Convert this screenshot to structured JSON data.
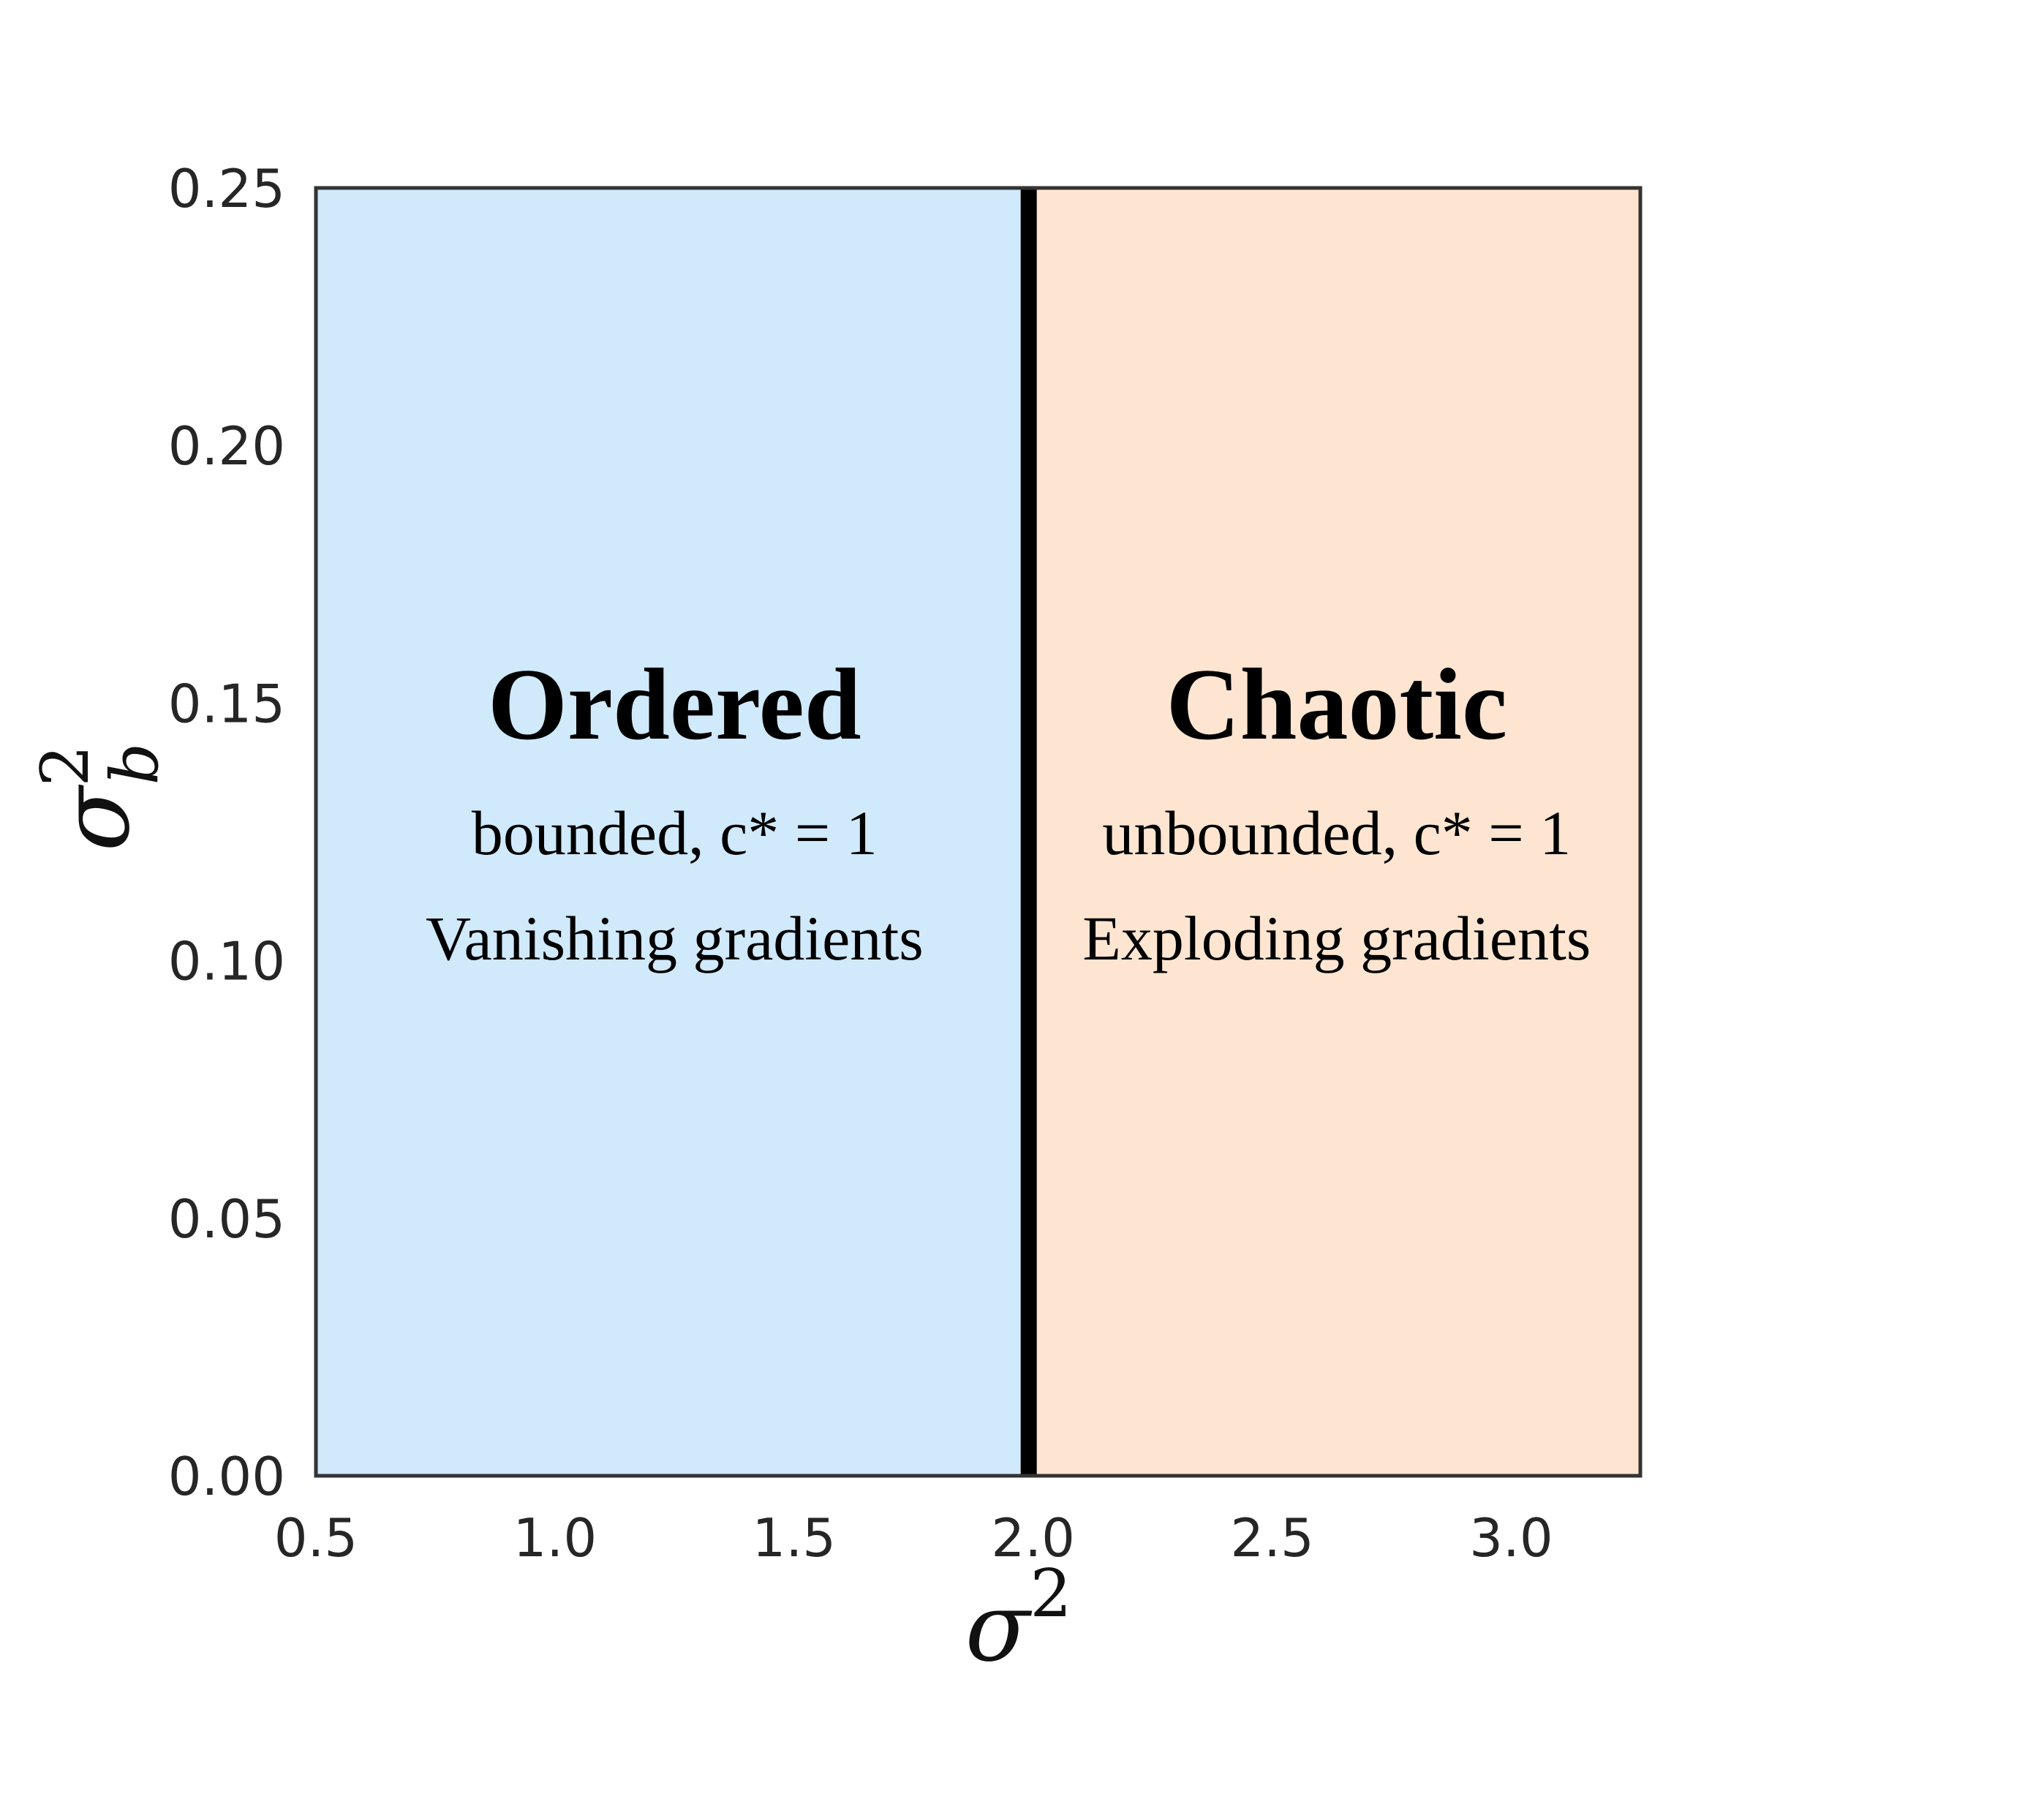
{
  "chart_data": {
    "type": "area",
    "xlabel": "σ",
    "xlabel_sup": "2",
    "ylabel": "σ",
    "ylabel_sub": "b",
    "ylabel_sup": "2",
    "xlim": [
      0.5,
      3.27
    ],
    "ylim": [
      0.0,
      0.25
    ],
    "x_ticks": [
      "0.5",
      "1.0",
      "1.5",
      "2.0",
      "2.5",
      "3.0"
    ],
    "x_tick_values": [
      0.5,
      1.0,
      1.5,
      2.0,
      2.5,
      3.0
    ],
    "y_ticks": [
      "0.00",
      "0.05",
      "0.10",
      "0.15",
      "0.20",
      "0.25"
    ],
    "y_tick_values": [
      0.0,
      0.05,
      0.1,
      0.15,
      0.2,
      0.25
    ],
    "grid": false,
    "boundary": {
      "x": 2.0,
      "color": "#000000"
    },
    "regions": [
      {
        "x_range": [
          0.5,
          2.0
        ],
        "color": "#d0e9fb",
        "title": "Ordered",
        "line1": "bounded, c* = 1",
        "line2": "Vanishing gradients"
      },
      {
        "x_range": [
          2.0,
          3.27
        ],
        "color": "#fde5d1",
        "title": "Chaotic",
        "line1": "unbounded, c* = 1",
        "line2": "Exploding gradients"
      }
    ]
  }
}
